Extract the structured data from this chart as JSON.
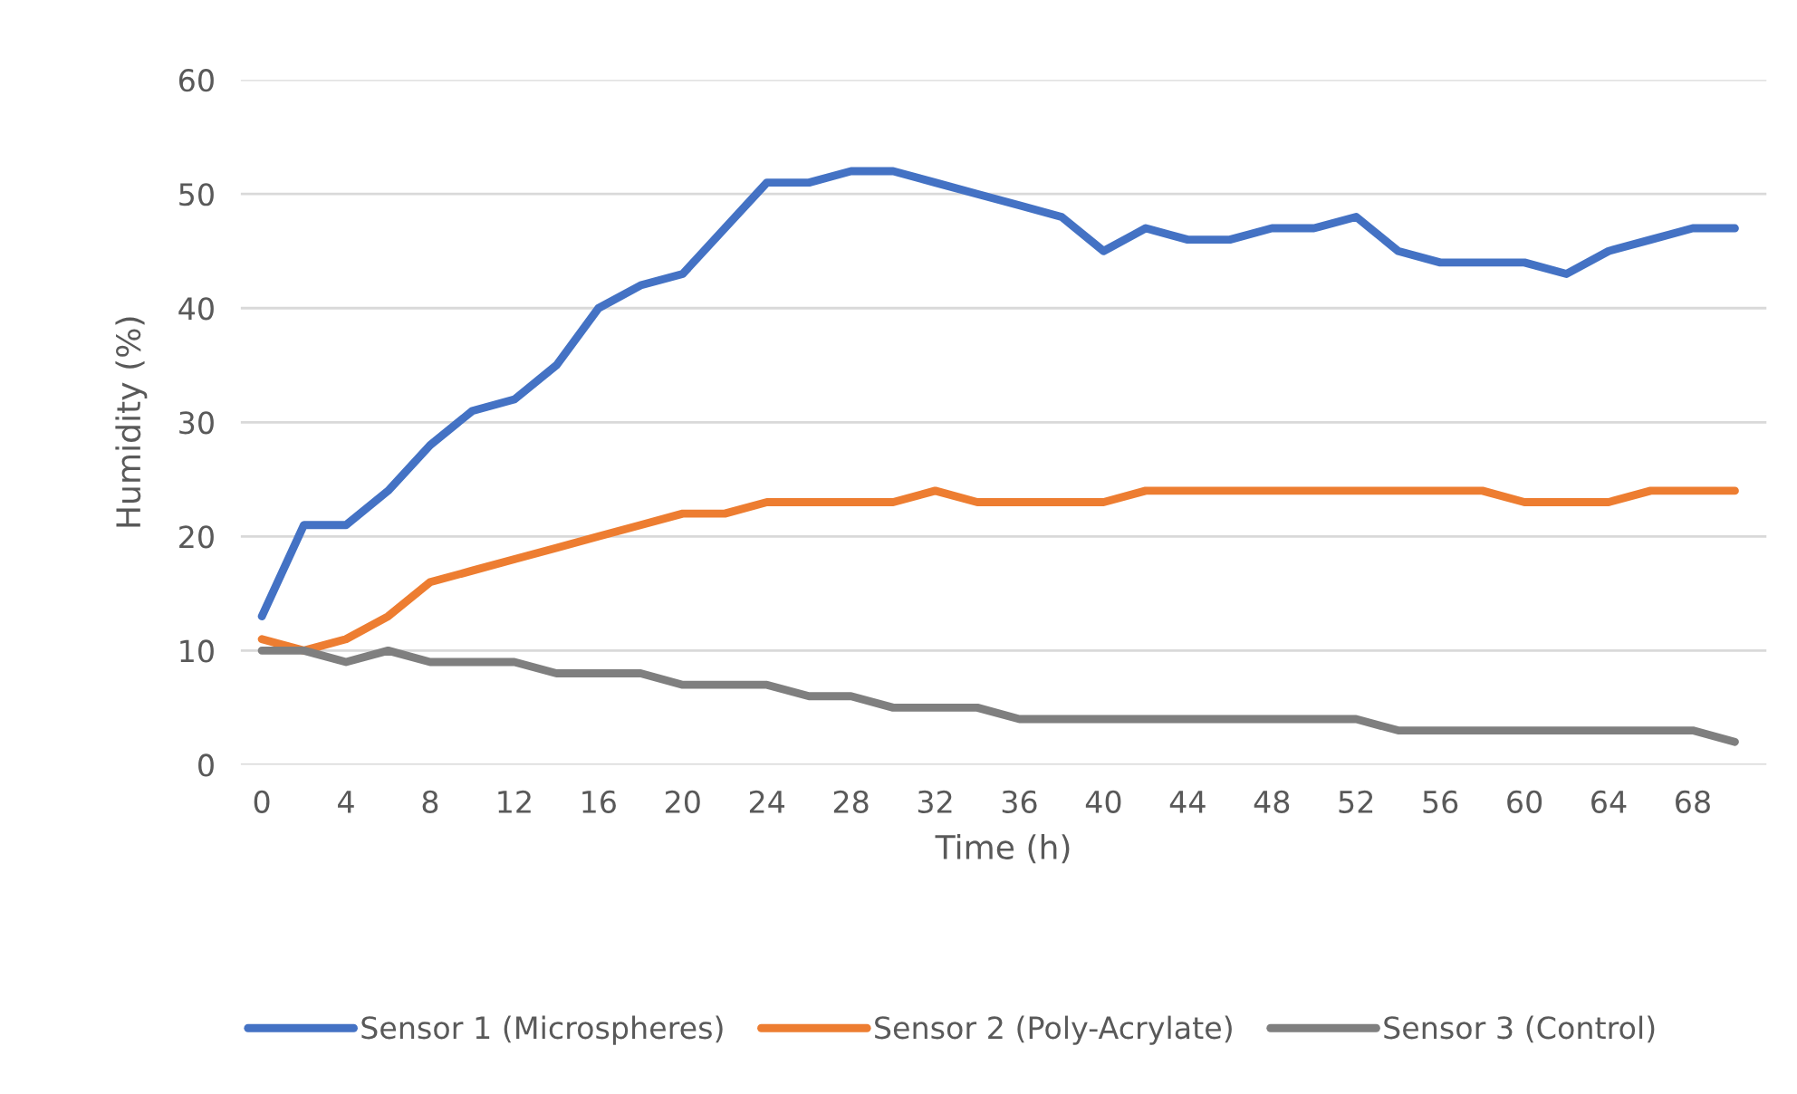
{
  "chart_data": {
    "type": "line",
    "xlabel": "Time (h)",
    "ylabel": "Humidity (%)",
    "x": [
      0,
      2,
      4,
      6,
      8,
      10,
      12,
      14,
      16,
      18,
      20,
      22,
      24,
      26,
      28,
      30,
      32,
      34,
      36,
      38,
      40,
      42,
      44,
      46,
      48,
      50,
      52,
      54,
      56,
      58,
      60,
      62,
      64,
      66,
      68,
      70
    ],
    "series": [
      {
        "name": "Sensor 1 (Microspheres)",
        "color": "#4472c4",
        "values": [
          13,
          21,
          21,
          24,
          28,
          31,
          32,
          35,
          40,
          42,
          43,
          47,
          51,
          51,
          52,
          52,
          51,
          50,
          49,
          48,
          45,
          47,
          46,
          46,
          47,
          47,
          48,
          45,
          44,
          44,
          44,
          43,
          45,
          46,
          47,
          47
        ]
      },
      {
        "name": "Sensor 2 (Poly-Acrylate)",
        "color": "#ed7d31",
        "values": [
          11,
          10,
          11,
          13,
          16,
          17,
          18,
          19,
          20,
          21,
          22,
          22,
          23,
          23,
          23,
          23,
          24,
          23,
          23,
          23,
          23,
          24,
          24,
          24,
          24,
          24,
          24,
          24,
          24,
          24,
          23,
          23,
          23,
          24,
          24,
          24
        ]
      },
      {
        "name": "Sensor 3 (Control)",
        "color": "#7f7f7f",
        "values": [
          10,
          10,
          9,
          10,
          9,
          9,
          9,
          8,
          8,
          8,
          7,
          7,
          7,
          6,
          6,
          5,
          5,
          5,
          4,
          4,
          4,
          4,
          4,
          4,
          4,
          4,
          4,
          3,
          3,
          3,
          3,
          3,
          3,
          3,
          3,
          2
        ]
      }
    ],
    "xlim": [
      -1,
      71.5
    ],
    "xticks": [
      0,
      4,
      8,
      12,
      16,
      20,
      24,
      28,
      32,
      36,
      40,
      44,
      48,
      52,
      56,
      60,
      64,
      68
    ],
    "ylim": [
      0,
      60
    ],
    "yticks": [
      0,
      10,
      20,
      30,
      40,
      50,
      60
    ],
    "grid": "y",
    "legend": "bottom",
    "marker": "none",
    "line_style": "solid"
  }
}
